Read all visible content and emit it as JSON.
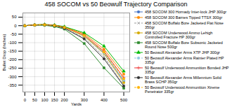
{
  "chart_data": {
    "type": "line",
    "title": "458 SOCOM vs 50 Beowulf Trajectory Comparison",
    "xlabel": "Yards",
    "ylabel": "Bullet Drop (Inches)",
    "x": [
      0,
      50,
      100,
      150,
      200,
      300,
      400,
      500
    ],
    "xlim": [
      -10,
      530
    ],
    "ylim": [
      -390,
      75
    ],
    "xticks": [
      0,
      50,
      100,
      150,
      200,
      300,
      400,
      500
    ],
    "yticks": [
      50,
      0,
      -50,
      -100,
      -150,
      -200,
      -250,
      -300,
      -350
    ],
    "grid": true,
    "legend": "right",
    "series": [
      {
        "name": "458 SOCOM 300 Hornady Inter-lock JHP 300gr",
        "color": "#4472C4",
        "marker": "circle",
        "line_style": "solid",
        "values": [
          0,
          5,
          6,
          2,
          -10,
          -60,
          -160,
          -325
        ]
      },
      {
        "name": "458 SOCOM 300 Barnes Tipped TTSX 300gr",
        "color": "#FF8C00",
        "marker": "circle",
        "line_style": "solid",
        "values": [
          0,
          5,
          7,
          3,
          -7,
          -48,
          -138,
          -285
        ]
      },
      {
        "name": "458 SOCOM Buffalo Bore Jacketed Flat Nose 350gr",
        "color": "#999999",
        "marker": "x",
        "line_style": "dashed",
        "values": [
          0,
          4,
          5,
          0,
          -14,
          -72,
          -182,
          -350
        ]
      },
      {
        "name": "458 SOCOM Underwood Ammo Lehigh Controlled Fracture HP 300gr",
        "color": "#D4AA00",
        "marker": "circle",
        "line_style": "solid",
        "values": [
          0,
          5,
          6,
          2,
          -10,
          -62,
          -165,
          -335
        ]
      },
      {
        "name": "458 SOCOM Buffalo Bore Subsonic Jacketed Round Nose 500gr",
        "color": "#2E8B2E",
        "marker": "square",
        "line_style": "solid",
        "values": [
          0,
          3,
          2,
          -5,
          -20,
          -105,
          -248,
          -368
        ]
      },
      {
        "name": "50 Beowulf Alexander Arms XTP JHP 300gr",
        "color": "#00BB00",
        "marker": "triangle",
        "line_style": "solid",
        "values": [
          0,
          5,
          7,
          4,
          -6,
          -42,
          -120,
          -268
        ]
      },
      {
        "name": "50 Beowulf Alexander Arms Rainier Plated HP 335gr",
        "color": "#90C8E0",
        "marker": "circle",
        "line_style": "dashed",
        "values": [
          0,
          4,
          5,
          1,
          -11,
          -60,
          -162,
          -320
        ]
      },
      {
        "name": "50 Beowulf Underwood Ammunition Bonded JHP 335gr",
        "color": "#EE3333",
        "marker": "plus",
        "line_style": "solid",
        "values": [
          0,
          4,
          6,
          2,
          -10,
          -55,
          -150,
          -305
        ]
      },
      {
        "name": "50 Beowulf Alexander Arms Millennium Solid Brass SCHP 350gr",
        "color": "#333333",
        "marker": "circle",
        "line_style": "solid",
        "values": [
          0,
          4,
          5,
          0,
          -15,
          -78,
          -195,
          -355
        ]
      },
      {
        "name": "50 Beowulf Underwood Ammunition Xtreme Penetrator 335gr",
        "color": "#FFB300",
        "marker": "circle",
        "line_style": "dashed",
        "values": [
          0,
          4,
          5,
          1,
          -11,
          -58,
          -155,
          -312
        ]
      }
    ]
  }
}
